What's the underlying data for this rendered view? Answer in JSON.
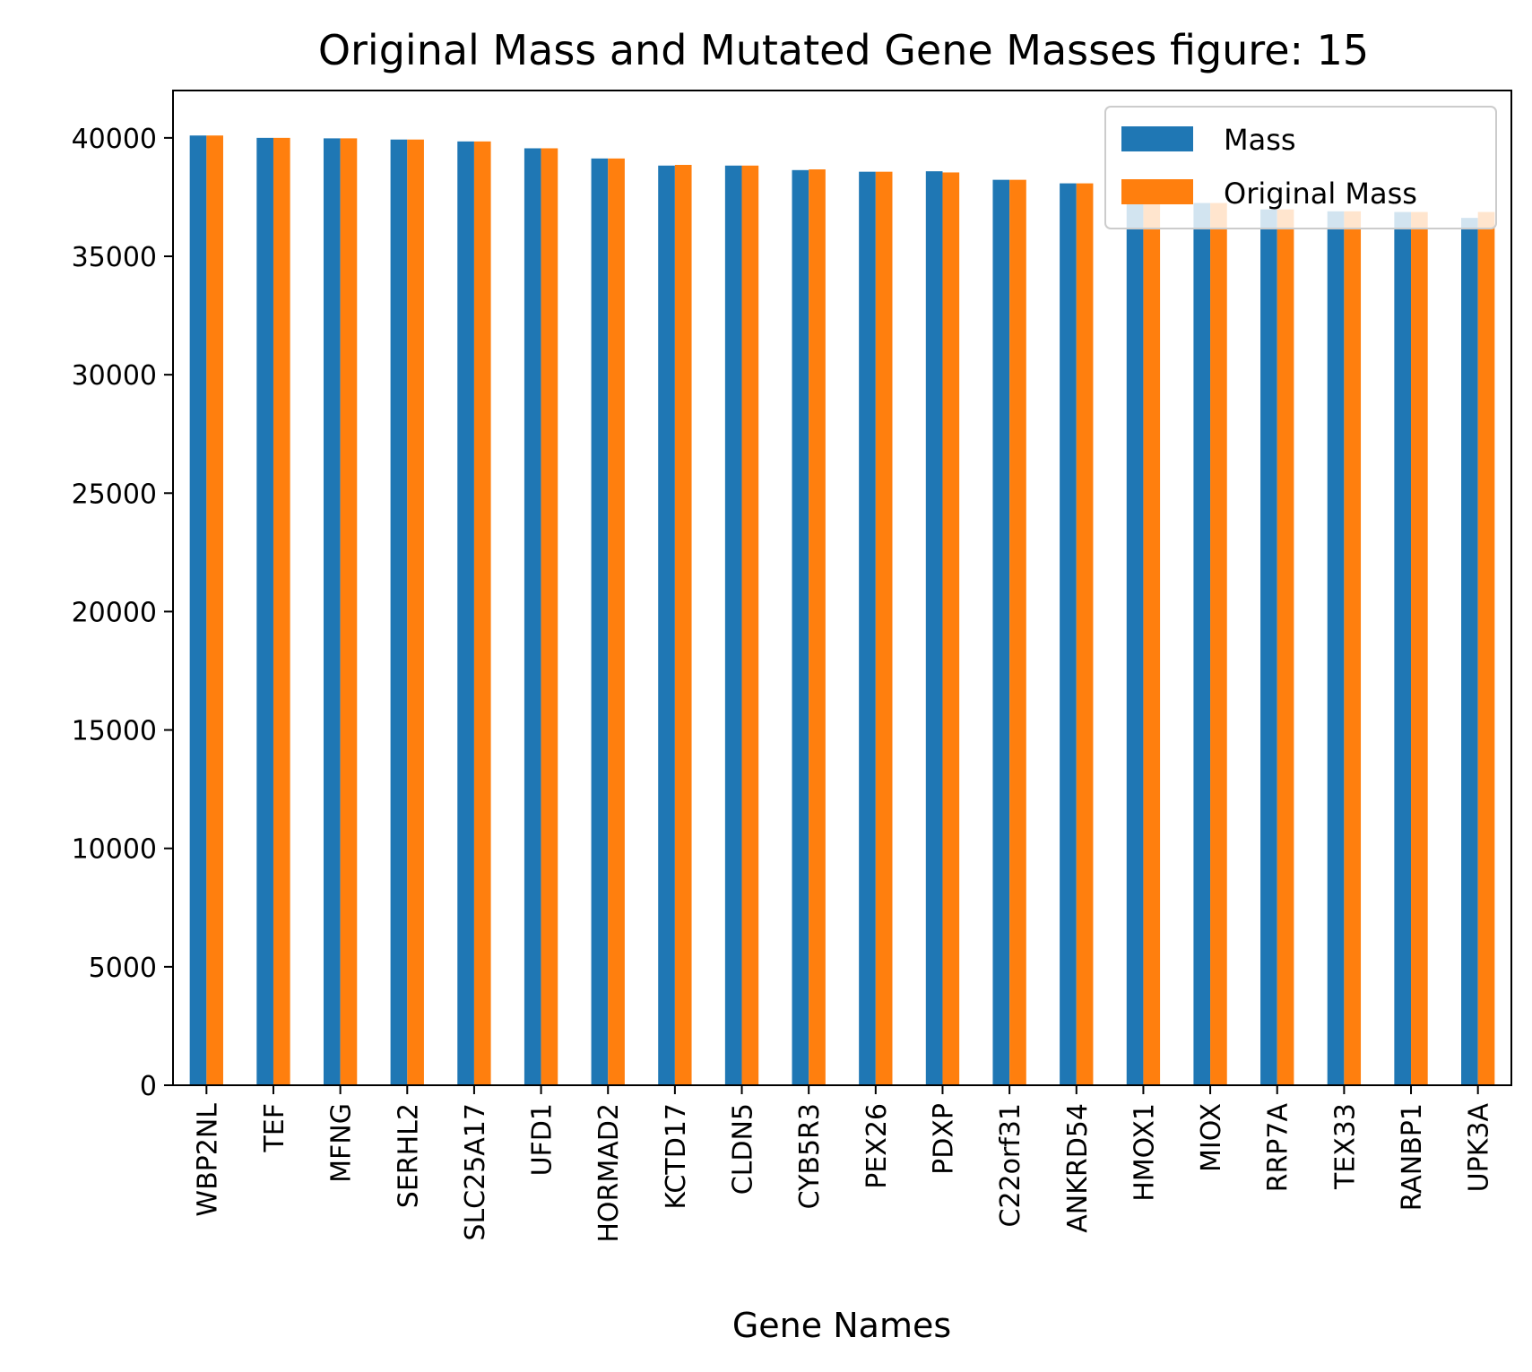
{
  "chart_data": {
    "type": "bar",
    "title": "Original Mass and Mutated Gene Masses figure: 15",
    "xlabel": "Gene Names",
    "ylabel": "",
    "ylim": [
      0,
      42000
    ],
    "yticks": [
      0,
      5000,
      10000,
      15000,
      20000,
      25000,
      30000,
      35000,
      40000
    ],
    "grid": false,
    "legend_position": "top-right",
    "categories": [
      "WBP2NL",
      "TEF",
      "MFNG",
      "SERHL2",
      "SLC25A17",
      "UFD1",
      "HORMAD2",
      "KCTD17",
      "CLDN5",
      "CYB5R3",
      "PEX26",
      "PDXP",
      "C22orf31",
      "ANKRD54",
      "HMOX1",
      "MIOX",
      "RRP7A",
      "TEX33",
      "RANBP1",
      "UPK3A"
    ],
    "series": [
      {
        "name": "Mass",
        "color": "#1f77b4",
        "values": [
          40100,
          40000,
          39980,
          39930,
          39850,
          39560,
          39130,
          38830,
          38830,
          38640,
          38570,
          38590,
          38230,
          38080,
          37250,
          37250,
          36980,
          36900,
          36870,
          36620
        ]
      },
      {
        "name": "Original Mass",
        "color": "#ff7f0e",
        "values": [
          40100,
          40000,
          39980,
          39930,
          39850,
          39560,
          39130,
          38860,
          38830,
          38670,
          38570,
          38540,
          38230,
          38080,
          37250,
          37250,
          36980,
          36900,
          36870,
          36870
        ]
      }
    ]
  }
}
